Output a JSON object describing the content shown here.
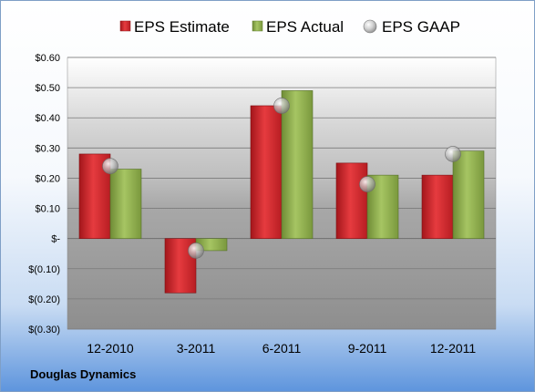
{
  "company": "Douglas Dynamics",
  "colors": {
    "estimate": "#c8262c",
    "actual": "#8fb04b",
    "gaap": "#c4c4c4"
  },
  "chart_data": {
    "type": "bar",
    "categories": [
      "12-2010",
      "3-2011",
      "6-2011",
      "9-2011",
      "12-2011"
    ],
    "series": [
      {
        "name": "EPS Estimate",
        "kind": "bar",
        "values": [
          0.28,
          -0.18,
          0.44,
          0.25,
          0.21
        ]
      },
      {
        "name": "EPS Actual",
        "kind": "bar",
        "values": [
          0.23,
          -0.04,
          0.49,
          0.21,
          0.29
        ]
      },
      {
        "name": "EPS GAAP",
        "kind": "marker",
        "values": [
          0.24,
          -0.04,
          0.44,
          0.18,
          0.28
        ]
      }
    ],
    "ylim": [
      -0.3,
      0.6
    ],
    "yticks": [
      0.6,
      0.5,
      0.4,
      0.3,
      0.2,
      0.1,
      0,
      -0.1,
      -0.2,
      -0.3
    ],
    "ytick_labels": [
      "$0.60",
      "$0.50",
      "$0.40",
      "$0.30",
      "$0.20",
      "$0.10",
      "$-",
      "$(0.10)",
      "$(0.20)",
      "$(0.30)"
    ],
    "grid": true,
    "legend_position": "top"
  }
}
